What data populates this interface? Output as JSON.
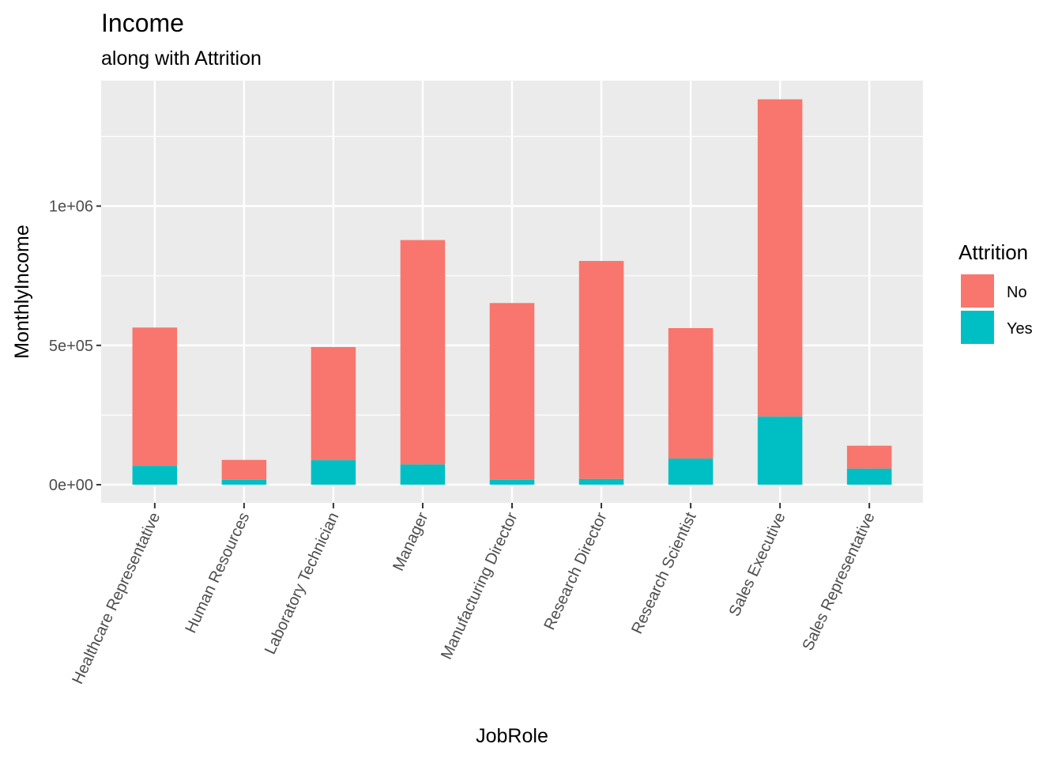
{
  "chart_data": {
    "type": "bar",
    "stacked": true,
    "title": "Income",
    "subtitle": "along with Attrition",
    "xlabel": "JobRole",
    "ylabel": "MonthlyIncome",
    "categories": [
      "Healthcare Representative",
      "Human Resources",
      "Laboratory Technician",
      "Manager",
      "Manufacturing Director",
      "Research Director",
      "Research Scientist",
      "Sales Executive",
      "Sales Representative"
    ],
    "series": [
      {
        "name": "No",
        "color": "#F8766D",
        "values": [
          496000,
          71000,
          406000,
          805000,
          634000,
          782000,
          468000,
          1138000,
          82000
        ]
      },
      {
        "name": "Yes",
        "color": "#00BFC4",
        "values": [
          68000,
          18000,
          88000,
          73000,
          18000,
          21000,
          94000,
          245000,
          58000
        ]
      }
    ],
    "ylim": [
      -65000,
      1450000
    ],
    "yticks": [
      0,
      500000,
      1000000
    ],
    "ytick_labels": [
      "0e+00",
      "5e+05",
      "1e+06"
    ],
    "yminor": [
      250000,
      750000,
      1250000
    ],
    "legend": {
      "title": "Attrition",
      "position": "right"
    },
    "grid": true,
    "panel_background": "#EBEBEB"
  }
}
